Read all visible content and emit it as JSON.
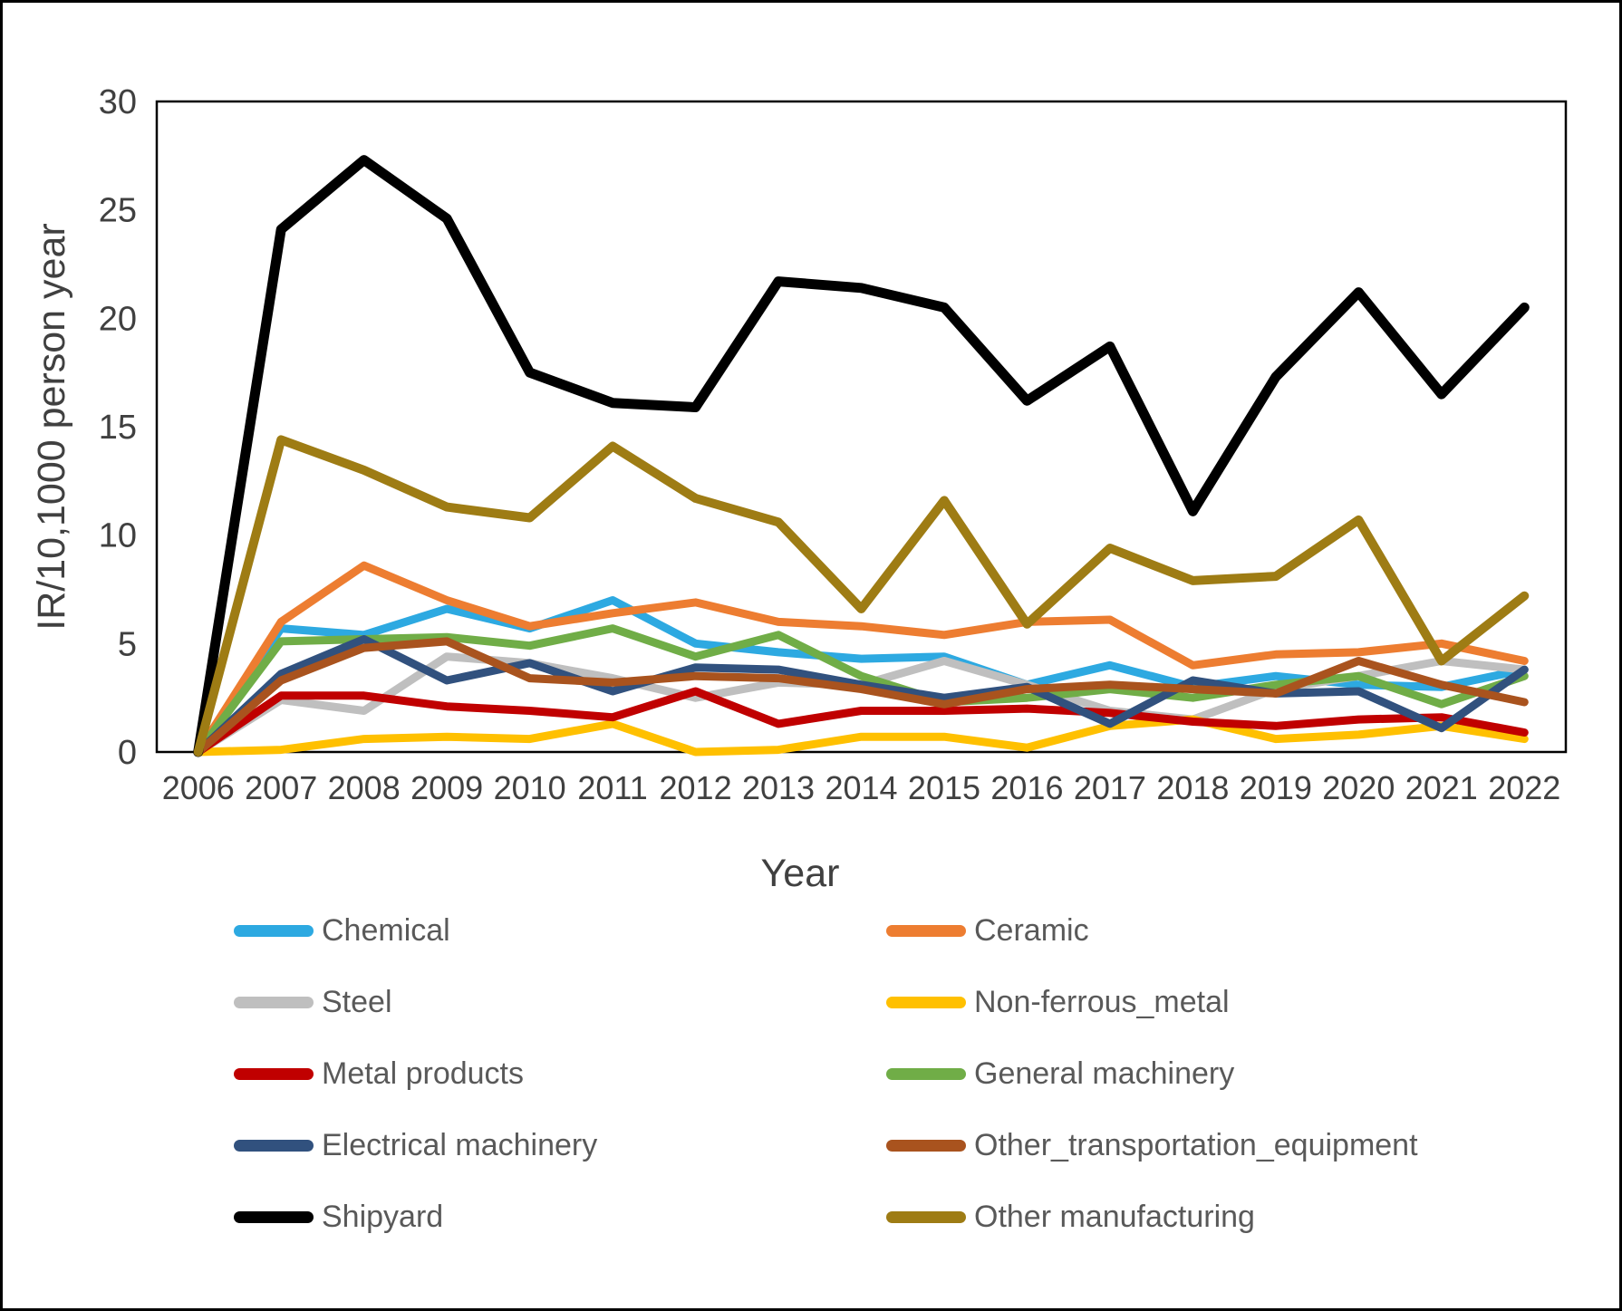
{
  "figure": {
    "background": "#FFFFFF",
    "border_color": "#000000"
  },
  "axes": {
    "tick_color": "#404040",
    "y_ticks": [
      "0",
      "5",
      "10",
      "15",
      "20",
      "25",
      "30"
    ],
    "frame_color": "#000000"
  },
  "legend": {
    "text_color": "#595959"
  },
  "chart_data": {
    "type": "line",
    "title": "",
    "xlabel": "Year",
    "ylabel": "IR/10,1000 person year",
    "ylim": [
      0,
      30
    ],
    "grid": false,
    "legend_position": "bottom, two columns, row-major",
    "categories": [
      "2006",
      "2007",
      "2008",
      "2009",
      "2010",
      "2011",
      "2012",
      "2013",
      "2014",
      "2015",
      "2016",
      "2017",
      "2018",
      "2019",
      "2020",
      "2021",
      "2022"
    ],
    "series": [
      {
        "name": "Chemical",
        "color": "#2DA9E1",
        "width": 9,
        "values": [
          0,
          5.7,
          5.4,
          6.6,
          5.7,
          7.0,
          5.0,
          4.6,
          4.3,
          4.4,
          3.1,
          4.0,
          3.0,
          3.5,
          3.1,
          3.0,
          3.8
        ]
      },
      {
        "name": "Ceramic",
        "color": "#ED7D31",
        "width": 9,
        "values": [
          0,
          6.0,
          8.6,
          7.0,
          5.8,
          6.4,
          6.9,
          6.0,
          5.8,
          5.4,
          6.0,
          6.1,
          4.0,
          4.5,
          4.6,
          5.0,
          4.2
        ]
      },
      {
        "name": "Steel",
        "color": "#BFBFBF",
        "width": 9,
        "values": [
          0,
          2.4,
          1.9,
          4.4,
          4.1,
          3.4,
          2.5,
          3.2,
          3.1,
          4.2,
          3.1,
          1.9,
          1.5,
          2.9,
          3.5,
          4.2,
          3.8
        ]
      },
      {
        "name": "Non-ferrous_metal",
        "color": "#FFC000",
        "width": 9,
        "values": [
          0,
          0.1,
          0.6,
          0.7,
          0.6,
          1.3,
          0.0,
          0.1,
          0.7,
          0.7,
          0.2,
          1.2,
          1.5,
          0.6,
          0.8,
          1.2,
          0.6
        ]
      },
      {
        "name": "Metal products",
        "color": "#C00000",
        "width": 9,
        "values": [
          0,
          2.6,
          2.6,
          2.1,
          1.9,
          1.6,
          2.8,
          1.3,
          1.9,
          1.9,
          2.0,
          1.8,
          1.4,
          1.2,
          1.5,
          1.6,
          0.9
        ]
      },
      {
        "name": "General machinery",
        "color": "#70AD47",
        "width": 9,
        "values": [
          0,
          5.1,
          5.2,
          5.3,
          4.9,
          5.7,
          4.4,
          5.4,
          3.5,
          2.3,
          2.5,
          2.9,
          2.5,
          3.1,
          3.5,
          2.2,
          3.5
        ]
      },
      {
        "name": "Electrical machinery",
        "color": "#31517E",
        "width": 9,
        "values": [
          0,
          3.6,
          5.2,
          3.3,
          4.1,
          2.8,
          3.9,
          3.8,
          3.1,
          2.5,
          3.0,
          1.3,
          3.3,
          2.7,
          2.8,
          1.1,
          3.8
        ]
      },
      {
        "name": "Other_transportation_equipment",
        "color": "#A9531E",
        "width": 9,
        "values": [
          0,
          3.3,
          4.8,
          5.1,
          3.4,
          3.2,
          3.5,
          3.4,
          2.9,
          2.2,
          2.9,
          3.1,
          2.9,
          2.7,
          4.2,
          3.1,
          2.3
        ]
      },
      {
        "name": "Shipyard",
        "color": "#000000",
        "width": 11,
        "values": [
          0,
          24.1,
          27.3,
          24.6,
          17.5,
          16.1,
          15.9,
          21.7,
          21.4,
          20.5,
          16.2,
          18.7,
          11.1,
          17.3,
          21.2,
          16.5,
          20.5
        ]
      },
      {
        "name": "Other manufacturing",
        "color": "#9E7C14",
        "width": 10,
        "values": [
          0,
          14.4,
          13.0,
          11.3,
          10.8,
          14.1,
          11.7,
          10.6,
          6.6,
          11.6,
          5.9,
          9.4,
          7.9,
          8.1,
          10.7,
          4.2,
          7.2
        ]
      }
    ]
  }
}
